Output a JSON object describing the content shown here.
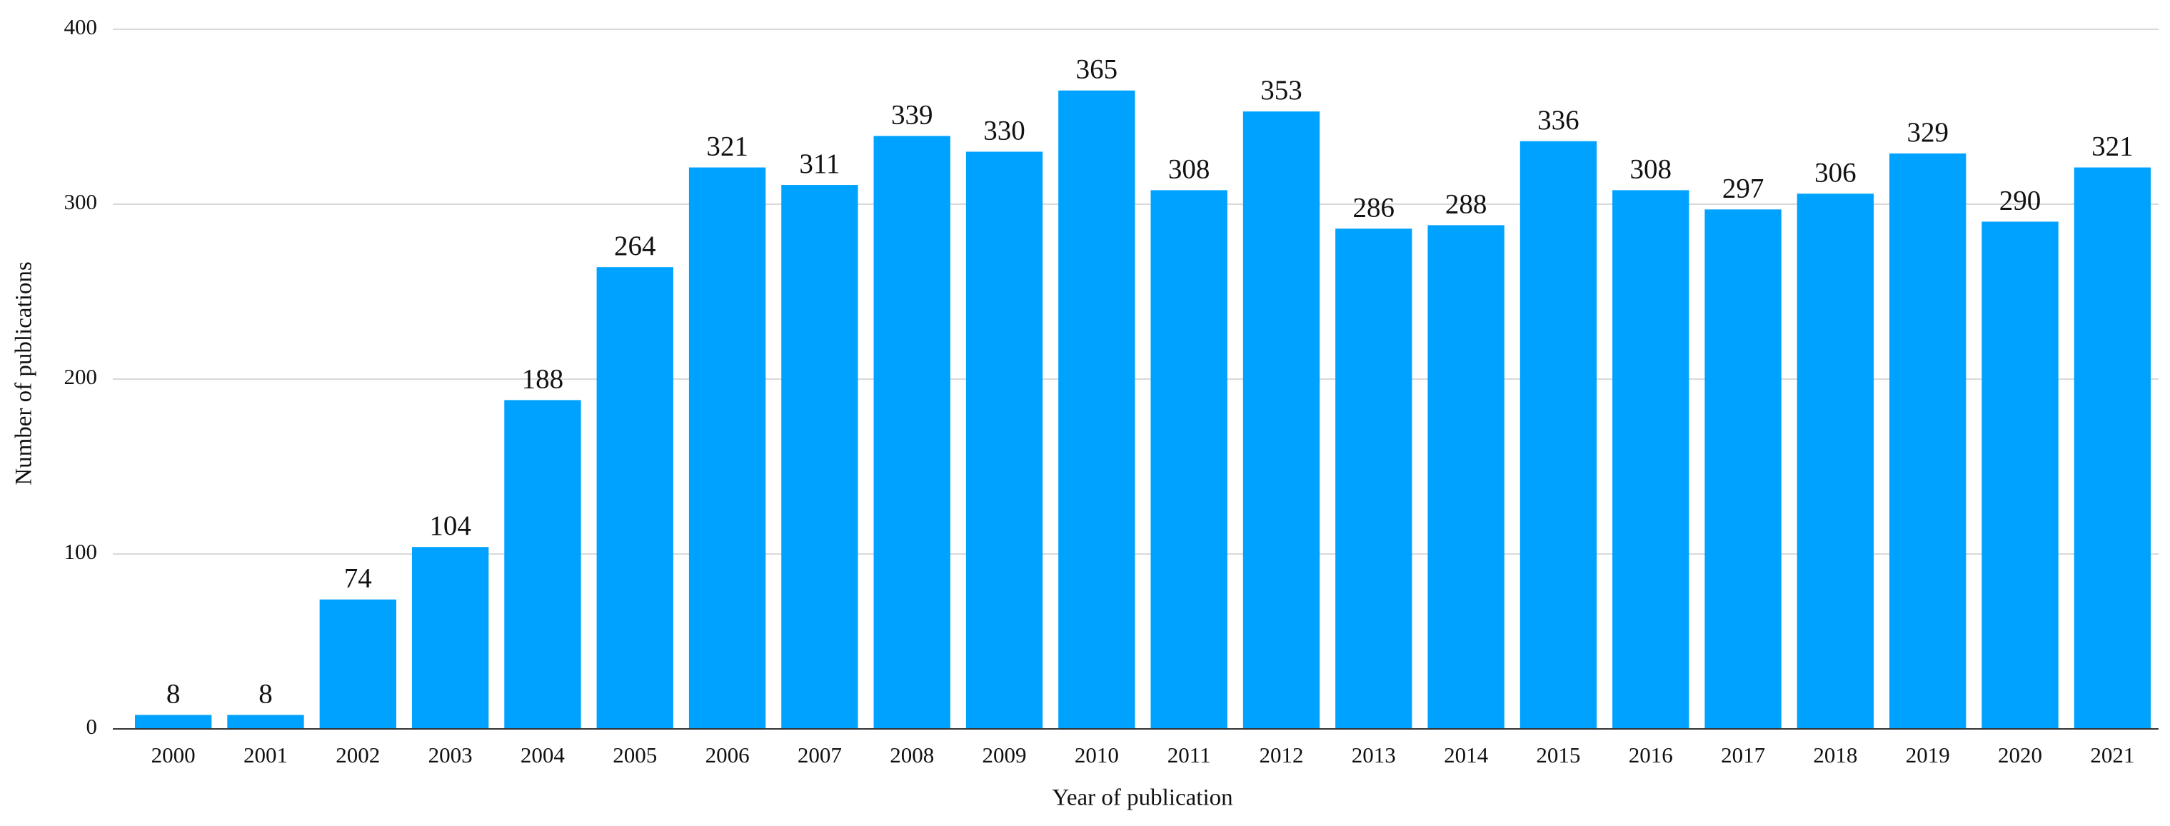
{
  "chart_data": {
    "type": "bar",
    "x_label": "Year of publication",
    "y_label": "Number of publications",
    "categories": [
      "2000",
      "2001",
      "2002",
      "2003",
      "2004",
      "2005",
      "2006",
      "2007",
      "2008",
      "2009",
      "2010",
      "2011",
      "2012",
      "2013",
      "2014",
      "2015",
      "2016",
      "2017",
      "2018",
      "2019",
      "2020",
      "2021"
    ],
    "values": [
      8,
      8,
      74,
      104,
      188,
      264,
      321,
      311,
      339,
      330,
      365,
      308,
      353,
      286,
      288,
      336,
      308,
      297,
      306,
      329,
      290,
      321
    ],
    "color": "#00a2ff",
    "ylim": [
      0,
      400
    ],
    "yticks": [
      0,
      100,
      200,
      300,
      400
    ],
    "grid": true,
    "data_labels": true
  }
}
